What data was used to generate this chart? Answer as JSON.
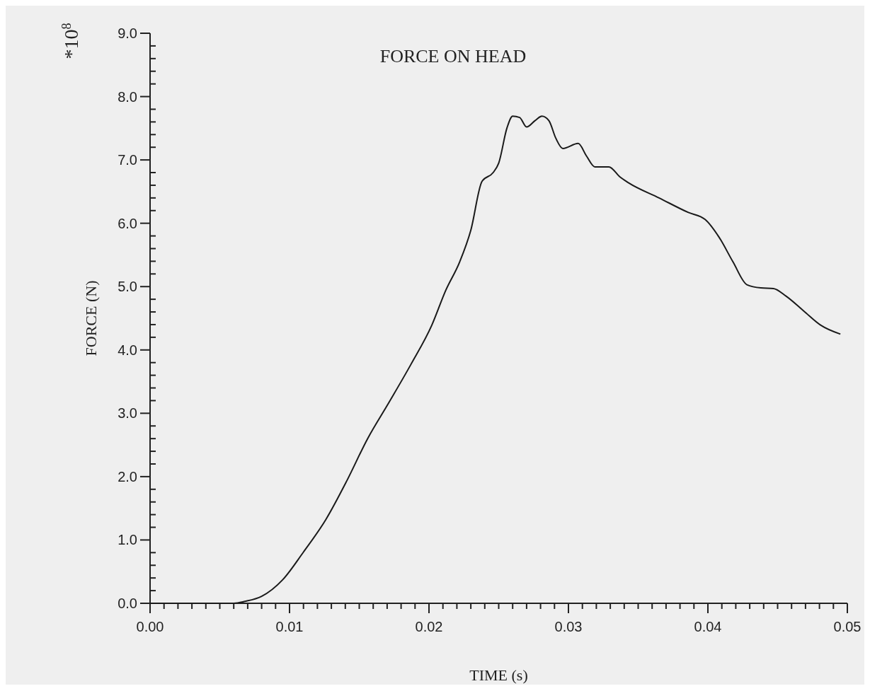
{
  "chart_data": {
    "type": "line",
    "title": "FORCE ON HEAD",
    "xlabel": "TIME (s)",
    "ylabel": "FORCE (N)",
    "annotations": [
      "*10$^{8}$"
    ],
    "xlim": [
      0,
      0.05
    ],
    "ylim": [
      0,
      9
    ],
    "xticks": [
      {
        "value": 0,
        "label": "0.00"
      },
      {
        "value": 0.001,
        "label": null
      },
      {
        "value": 0.002,
        "label": null
      },
      {
        "value": 0.003,
        "label": null
      },
      {
        "value": 0.004,
        "label": null
      },
      {
        "value": 0.005,
        "label": null
      },
      {
        "value": 0.006,
        "label": null
      },
      {
        "value": 0.007,
        "label": null
      },
      {
        "value": 0.008,
        "label": null
      },
      {
        "value": 0.009,
        "label": null
      },
      {
        "value": 0.01,
        "label": "0.01"
      },
      {
        "value": 0.011,
        "label": null
      },
      {
        "value": 0.012,
        "label": null
      },
      {
        "value": 0.013,
        "label": null
      },
      {
        "value": 0.014,
        "label": null
      },
      {
        "value": 0.015,
        "label": null
      },
      {
        "value": 0.016,
        "label": null
      },
      {
        "value": 0.017,
        "label": null
      },
      {
        "value": 0.018,
        "label": null
      },
      {
        "value": 0.019,
        "label": null
      },
      {
        "value": 0.02,
        "label": "0.02"
      },
      {
        "value": 0.021,
        "label": null
      },
      {
        "value": 0.022,
        "label": null
      },
      {
        "value": 0.023,
        "label": null
      },
      {
        "value": 0.024,
        "label": null
      },
      {
        "value": 0.025,
        "label": null
      },
      {
        "value": 0.026,
        "label": null
      },
      {
        "value": 0.027,
        "label": null
      },
      {
        "value": 0.028,
        "label": null
      },
      {
        "value": 0.029,
        "label": null
      },
      {
        "value": 0.03,
        "label": "0.03"
      },
      {
        "value": 0.031,
        "label": null
      },
      {
        "value": 0.032,
        "label": null
      },
      {
        "value": 0.033,
        "label": null
      },
      {
        "value": 0.034,
        "label": null
      },
      {
        "value": 0.035,
        "label": null
      },
      {
        "value": 0.036,
        "label": null
      },
      {
        "value": 0.037,
        "label": null
      },
      {
        "value": 0.038,
        "label": null
      },
      {
        "value": 0.039,
        "label": null
      },
      {
        "value": 0.04,
        "label": "0.04"
      },
      {
        "value": 0.041,
        "label": null
      },
      {
        "value": 0.042,
        "label": null
      },
      {
        "value": 0.043,
        "label": null
      },
      {
        "value": 0.044,
        "label": null
      },
      {
        "value": 0.045,
        "label": null
      },
      {
        "value": 0.046,
        "label": null
      },
      {
        "value": 0.047,
        "label": null
      },
      {
        "value": 0.048,
        "label": null
      },
      {
        "value": 0.049,
        "label": null
      },
      {
        "value": 0.05,
        "label": "0.05"
      }
    ],
    "yticks": [
      {
        "value": 0,
        "label": "0.0"
      },
      {
        "value": 0.2,
        "label": null
      },
      {
        "value": 0.4,
        "label": null
      },
      {
        "value": 0.6,
        "label": null
      },
      {
        "value": 0.8,
        "label": null
      },
      {
        "value": 1,
        "label": "1.0"
      },
      {
        "value": 1.2,
        "label": null
      },
      {
        "value": 1.4,
        "label": null
      },
      {
        "value": 1.6,
        "label": null
      },
      {
        "value": 1.8,
        "label": null
      },
      {
        "value": 2,
        "label": "2.0"
      },
      {
        "value": 2.2,
        "label": null
      },
      {
        "value": 2.4,
        "label": null
      },
      {
        "value": 2.6,
        "label": null
      },
      {
        "value": 2.8,
        "label": null
      },
      {
        "value": 3,
        "label": "3.0"
      },
      {
        "value": 3.2,
        "label": null
      },
      {
        "value": 3.4,
        "label": null
      },
      {
        "value": 3.6,
        "label": null
      },
      {
        "value": 3.8,
        "label": null
      },
      {
        "value": 4,
        "label": "4.0"
      },
      {
        "value": 4.2,
        "label": null
      },
      {
        "value": 4.4,
        "label": null
      },
      {
        "value": 4.6,
        "label": null
      },
      {
        "value": 4.8,
        "label": null
      },
      {
        "value": 5,
        "label": "5.0"
      },
      {
        "value": 5.2,
        "label": null
      },
      {
        "value": 5.4,
        "label": null
      },
      {
        "value": 5.6,
        "label": null
      },
      {
        "value": 5.8,
        "label": null
      },
      {
        "value": 6,
        "label": "6.0"
      },
      {
        "value": 6.2,
        "label": null
      },
      {
        "value": 6.4,
        "label": null
      },
      {
        "value": 6.6,
        "label": null
      },
      {
        "value": 6.8,
        "label": null
      },
      {
        "value": 7,
        "label": "7.0"
      },
      {
        "value": 7.2,
        "label": null
      },
      {
        "value": 7.4,
        "label": null
      },
      {
        "value": 7.6,
        "label": null
      },
      {
        "value": 7.8,
        "label": null
      },
      {
        "value": 8,
        "label": "8.0"
      },
      {
        "value": 8.2,
        "label": null
      },
      {
        "value": 8.4,
        "label": null
      },
      {
        "value": 8.6,
        "label": null
      },
      {
        "value": 8.8,
        "label": null
      },
      {
        "value": 9,
        "label": "9.0"
      }
    ],
    "grid": false,
    "marker": "none",
    "line_style": "solid",
    "series": [
      {
        "color": "#1a1a1a",
        "x": [
          0,
          0.006,
          0.0068,
          0.008,
          0.0095,
          0.011,
          0.0126,
          0.0141,
          0.0156,
          0.0171,
          0.0187,
          0.0202,
          0.0212,
          0.0222,
          0.023,
          0.0238,
          0.0246,
          0.025,
          0.0256,
          0.026,
          0.0265,
          0.027,
          0.0276,
          0.0281,
          0.0286,
          0.0291,
          0.0296,
          0.0307,
          0.0313,
          0.0319,
          0.0329,
          0.0337,
          0.0343,
          0.0365,
          0.0386,
          0.0398,
          0.0408,
          0.0418,
          0.0428,
          0.0438,
          0.0447,
          0.0456,
          0.0469,
          0.0481,
          0.0495
        ],
        "values": [
          0,
          0,
          0.03,
          0.11,
          0.37,
          0.81,
          1.32,
          1.93,
          2.6,
          3.16,
          3.77,
          4.39,
          4.94,
          5.39,
          5.89,
          6.66,
          6.8,
          6.95,
          7.51,
          7.69,
          7.67,
          7.52,
          7.62,
          7.69,
          7.62,
          7.34,
          7.18,
          7.26,
          7.06,
          6.89,
          6.89,
          6.73,
          6.64,
          6.4,
          6.17,
          6.06,
          5.78,
          5.39,
          5.03,
          4.98,
          4.97,
          4.85,
          4.61,
          4.39,
          4.25
        ]
      }
    ]
  }
}
